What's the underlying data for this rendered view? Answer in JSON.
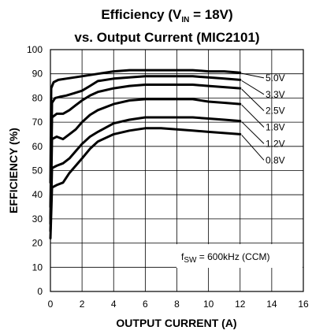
{
  "chart_data": {
    "type": "line",
    "title": {
      "line1_prefix": "Efficiency (V",
      "line1_sub": "IN",
      "line1_suffix": " = 18V)",
      "line2": "vs. Output Current (MIC2101)"
    },
    "xlabel": "OUTPUT CURRENT (A)",
    "ylabel": "EFFICIENCY (%)",
    "xlim": [
      0,
      16
    ],
    "ylim": [
      0,
      100
    ],
    "xticks": [
      0,
      2,
      4,
      6,
      8,
      10,
      12,
      14,
      16
    ],
    "yticks": [
      0,
      10,
      20,
      30,
      40,
      50,
      60,
      70,
      80,
      90,
      100
    ],
    "grid": true,
    "annotation": {
      "prefix": "f",
      "sub": "SW",
      "suffix": " = 600kHz (CCM)"
    },
    "series": [
      {
        "name": "5.0V",
        "x": [
          0,
          0.05,
          0.2,
          0.5,
          1,
          1.5,
          2,
          3,
          4,
          5,
          6,
          7,
          8,
          9,
          10,
          11,
          12
        ],
        "y": [
          45,
          84,
          86.5,
          87.5,
          88,
          88.5,
          89,
          90,
          91,
          91.5,
          91.5,
          91.5,
          91.5,
          91.5,
          91,
          91,
          90.5
        ]
      },
      {
        "name": "3.3V",
        "x": [
          0,
          0.1,
          0.3,
          0.6,
          1,
          1.5,
          2,
          2.5,
          3,
          4,
          5,
          6,
          7,
          8,
          9,
          10,
          11,
          12
        ],
        "y": [
          35,
          78,
          80,
          80.5,
          81,
          82,
          83,
          85,
          87,
          88,
          88.5,
          89,
          89,
          89,
          89,
          88.5,
          88,
          87.5
        ]
      },
      {
        "name": "2.5V",
        "x": [
          0,
          0.1,
          0.4,
          0.8,
          1.2,
          1.6,
          2,
          2.5,
          3,
          4,
          5,
          6,
          7,
          8,
          9,
          10,
          11,
          12
        ],
        "y": [
          30,
          72,
          73.5,
          73.5,
          75,
          77,
          79,
          81,
          82.5,
          84,
          85,
          85.5,
          85.5,
          85.5,
          85.5,
          85,
          84.5,
          84
        ]
      },
      {
        "name": "1.8V",
        "x": [
          0,
          0.1,
          0.4,
          0.8,
          1.2,
          1.6,
          2,
          2.5,
          3,
          4,
          5,
          6,
          7,
          8,
          9,
          10,
          11,
          12
        ],
        "y": [
          28,
          63,
          64,
          63,
          65,
          67,
          70,
          73,
          75,
          77.5,
          79,
          79.5,
          79.5,
          79.5,
          79.5,
          78.5,
          78,
          77.5
        ]
      },
      {
        "name": "1.2V",
        "x": [
          0,
          0.1,
          0.4,
          0.8,
          1.2,
          1.6,
          2,
          2.5,
          3,
          4,
          5,
          6,
          7,
          8,
          9,
          10,
          11,
          12
        ],
        "y": [
          25,
          51,
          52,
          53,
          55,
          58,
          61,
          64,
          66,
          69.5,
          71,
          72,
          72,
          72,
          72,
          71.5,
          71,
          70.5
        ]
      },
      {
        "name": "0.8V",
        "x": [
          0,
          0.1,
          0.4,
          0.8,
          1.2,
          1.6,
          2,
          2.5,
          3,
          4,
          5,
          6,
          7,
          8,
          9,
          10,
          11,
          12
        ],
        "y": [
          22,
          43,
          44,
          45,
          49,
          52,
          55,
          59,
          62,
          65,
          66.5,
          67.5,
          67.5,
          67,
          66.5,
          66,
          65.5,
          65
        ]
      }
    ]
  }
}
